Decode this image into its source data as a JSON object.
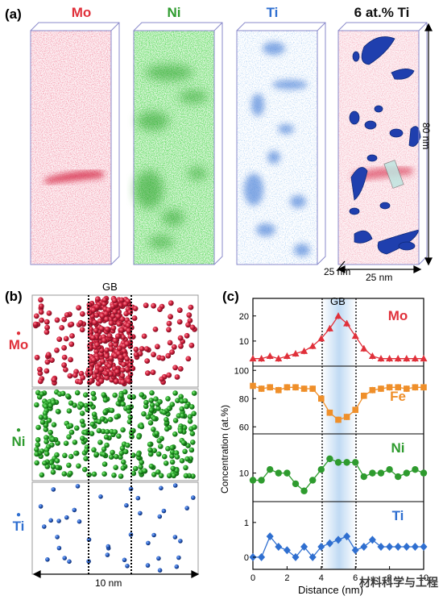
{
  "panel_a": {
    "label": "(a)",
    "titles": [
      {
        "text": "Mo",
        "color": "#e0303a"
      },
      {
        "text": "Ni",
        "color": "#2e9b2e"
      },
      {
        "text": "Ti",
        "color": "#2f6fd0"
      },
      {
        "text": "6 at.% Ti",
        "color": "#111111"
      }
    ],
    "dim_height": "80 nm",
    "dim_depth": "25 nm",
    "dim_width": "25 nm"
  },
  "panel_b": {
    "label": "(b)",
    "gb_label": "GB",
    "rows": [
      {
        "element": "Mo",
        "color": "#e0303a"
      },
      {
        "element": "Ni",
        "color": "#2e9b2e"
      },
      {
        "element": "Ti",
        "color": "#2f6fd0"
      }
    ],
    "scale": "10 nm"
  },
  "panel_c": {
    "label": "(c)",
    "gb_label": "GB",
    "ylabel": "Concentration (at.%)",
    "xlabel": "Distance (nm)",
    "xticks": [
      "0",
      "2",
      "4",
      "6",
      "8",
      "10"
    ],
    "subplots": [
      {
        "element": "Mo",
        "color": "#e0303a",
        "yticks": [
          "10",
          "20"
        ]
      },
      {
        "element": "Fe",
        "color": "#ef8f2a",
        "yticks": [
          "60",
          "80",
          "100"
        ]
      },
      {
        "element": "Ni",
        "color": "#2e9b2e",
        "yticks": [
          "10"
        ]
      },
      {
        "element": "Ti",
        "color": "#2f6fd0",
        "yticks": [
          "0",
          "1"
        ]
      }
    ]
  },
  "chart_data": [
    {
      "type": "line",
      "series": [
        {
          "name": "Mo",
          "x": [
            0,
            0.5,
            1,
            1.5,
            2,
            2.5,
            3,
            3.5,
            4,
            4.5,
            5,
            5.5,
            6,
            6.5,
            7,
            7.5,
            8,
            8.5,
            9,
            9.5,
            10
          ],
          "values": [
            3,
            3,
            4,
            3,
            4,
            5,
            6,
            8,
            11,
            15,
            20,
            17,
            12,
            7,
            4,
            3,
            3,
            3,
            3,
            3,
            3
          ]
        }
      ],
      "yticks": [
        10,
        20
      ],
      "xlim": [
        0,
        10
      ]
    },
    {
      "type": "line",
      "series": [
        {
          "name": "Fe",
          "x": [
            0,
            0.5,
            1,
            1.5,
            2,
            2.5,
            3,
            3.5,
            4,
            4.5,
            5,
            5.5,
            6,
            6.5,
            7,
            7.5,
            8,
            8.5,
            9,
            9.5,
            10
          ],
          "values": [
            89,
            87,
            88,
            86,
            88,
            88,
            87,
            87,
            80,
            70,
            65,
            67,
            72,
            82,
            86,
            87,
            88,
            88,
            87,
            88,
            88
          ]
        }
      ],
      "yticks": [
        60,
        80,
        100
      ],
      "xlim": [
        0,
        10
      ]
    },
    {
      "type": "line",
      "series": [
        {
          "name": "Ni",
          "x": [
            0,
            0.5,
            1,
            1.5,
            2,
            2.5,
            3,
            3.5,
            4,
            4.5,
            5,
            5.5,
            6,
            6.5,
            7,
            7.5,
            8,
            8.5,
            9,
            9.5,
            10
          ],
          "values": [
            8,
            8,
            11,
            10,
            10,
            7,
            5,
            8,
            11,
            14,
            13,
            13,
            13,
            9,
            10,
            10,
            11,
            9,
            10,
            11,
            10
          ]
        }
      ],
      "yticks": [
        10
      ],
      "xlim": [
        0,
        10
      ]
    },
    {
      "type": "line",
      "series": [
        {
          "name": "Ti",
          "x": [
            0,
            0.5,
            1,
            1.5,
            2,
            2.5,
            3,
            3.5,
            4,
            4.5,
            5,
            5.5,
            6,
            6.5,
            7,
            7.5,
            8,
            8.5,
            9,
            9.5,
            10
          ],
          "values": [
            0,
            0,
            0.6,
            0.3,
            0.2,
            0,
            0.3,
            0,
            0.3,
            0.4,
            0.5,
            0.6,
            0.2,
            0.3,
            0.5,
            0.3,
            0.3,
            0.3,
            0.3,
            0.3,
            0.3
          ]
        }
      ],
      "yticks": [
        0,
        1
      ],
      "xlim": [
        0,
        10
      ]
    }
  ],
  "watermark": "材料科学与工程"
}
